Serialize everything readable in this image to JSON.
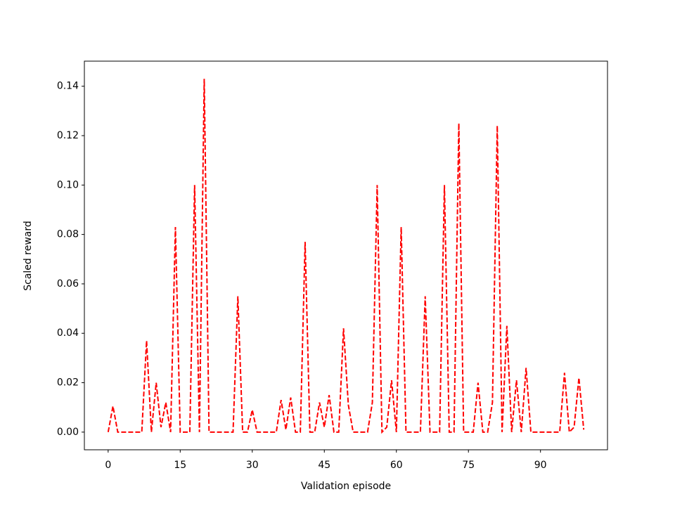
{
  "chart_data": {
    "type": "line",
    "x_label": "Validation episode",
    "y_label": "Scaled reward",
    "x": [
      0,
      1,
      2,
      3,
      4,
      5,
      6,
      7,
      8,
      9,
      10,
      11,
      12,
      13,
      14,
      15,
      16,
      17,
      18,
      19,
      20,
      21,
      22,
      23,
      24,
      25,
      26,
      27,
      28,
      29,
      30,
      31,
      32,
      33,
      34,
      35,
      36,
      37,
      38,
      39,
      40,
      41,
      42,
      43,
      44,
      45,
      46,
      47,
      48,
      49,
      50,
      51,
      52,
      53,
      54,
      55,
      56,
      57,
      58,
      59,
      60,
      61,
      62,
      63,
      64,
      65,
      66,
      67,
      68,
      69,
      70,
      71,
      72,
      73,
      74,
      75,
      76,
      77,
      78,
      79,
      80,
      81,
      82,
      83,
      84,
      85,
      86,
      87,
      88,
      89,
      90,
      91,
      92,
      93,
      94,
      95,
      96,
      97,
      98,
      99
    ],
    "series": [
      {
        "color": "#ff0000",
        "linestyle": "dashed",
        "values": [
          0,
          0.0105,
          0,
          0,
          0,
          0,
          0,
          0,
          0.037,
          0,
          0.02,
          0.002,
          0.012,
          0,
          0.083,
          0,
          0,
          0,
          0.1,
          0,
          0.143,
          0,
          0,
          0,
          0,
          0,
          0,
          0.055,
          0,
          0,
          0.009,
          0,
          0,
          0,
          0,
          0,
          0.013,
          0.001,
          0.014,
          0,
          0,
          0.077,
          0,
          0,
          0.012,
          0.002,
          0.015,
          0,
          0,
          0.042,
          0.011,
          0,
          0,
          0,
          0,
          0.012,
          0.1,
          0,
          0.002,
          0.021,
          0,
          0.083,
          0,
          0,
          0,
          0,
          0.055,
          0,
          0,
          0,
          0.1,
          0,
          0,
          0.125,
          0,
          0,
          0,
          0.02,
          0,
          0,
          0.012,
          0.124,
          0,
          0.043,
          0,
          0.021,
          0,
          0.026,
          0,
          0,
          0,
          0,
          0,
          0,
          0,
          0.024,
          0,
          0.002,
          0.022,
          0.001
        ]
      }
    ],
    "xlim": [
      -4.95,
      103.95
    ],
    "xticks": [
      0,
      15,
      30,
      45,
      60,
      75,
      90
    ],
    "ylim": [
      -0.00715,
      0.15015
    ],
    "yticks": [
      {
        "value": 0,
        "label": "0.00"
      },
      {
        "value": 0.02,
        "label": "0.02"
      },
      {
        "value": 0.04,
        "label": "0.04"
      },
      {
        "value": 0.06,
        "label": "0.06"
      },
      {
        "value": 0.08,
        "label": "0.08"
      },
      {
        "value": 0.1,
        "label": "0.10"
      },
      {
        "value": 0.12,
        "label": "0.12"
      },
      {
        "value": 0.14,
        "label": "0.14"
      }
    ],
    "grid": false
  }
}
